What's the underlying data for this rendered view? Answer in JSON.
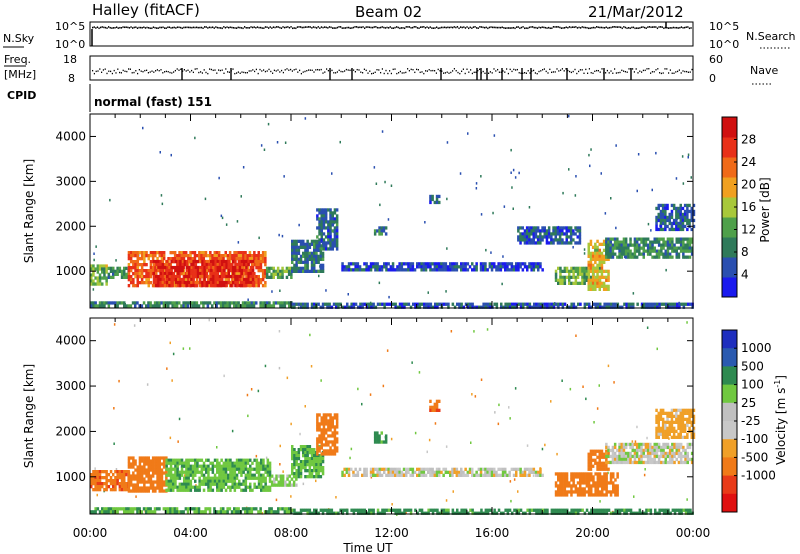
{
  "header": {
    "station": "Halley (fitACF)",
    "beam": "Beam 02",
    "date": "21/Mar/2012"
  },
  "aux_panels": {
    "nsky_label": "N.Sky",
    "nsky_ticks": [
      "10^5",
      "10^0"
    ],
    "nsearch_label": "N.Search",
    "nsearch_ticks": [
      "10^5",
      "10^0"
    ],
    "freq_label_1": "Freq.",
    "freq_label_2": "[MHz]",
    "freq_ticks": [
      "18",
      "8"
    ],
    "nave_label": "Nave",
    "nave_ticks": [
      "60",
      "0"
    ],
    "cpid_label": "CPID",
    "cpid_text": "normal (fast) 151"
  },
  "colors": {
    "power_scale": [
      "#1a1aee",
      "#2a4fb0",
      "#2f7a5a",
      "#4fa04a",
      "#a8c83a",
      "#f0a020",
      "#f06a18",
      "#e83018",
      "#d01010"
    ],
    "velocity_scale": [
      "#e01010",
      "#e83a18",
      "#f07a18",
      "#f0a028",
      "#c8c8c8",
      "#c0c0c0",
      "#70c840",
      "#2e8a50",
      "#2a5ab0",
      "#1e2ebe"
    ]
  },
  "chart_data": [
    {
      "type": "heatmap",
      "name": "Power panel",
      "xlabel": "",
      "ylabel": "Slant Range [km]",
      "x_ticks": [
        "00:00",
        "04:00",
        "08:00",
        "12:00",
        "16:00",
        "20:00",
        "00:00"
      ],
      "x_range_hours": [
        0,
        24
      ],
      "y_ticks": [
        1000,
        2000,
        3000,
        4000
      ],
      "ylim": [
        180,
        4500
      ],
      "colorbar_label": "Power [dB]",
      "colorbar_ticks": [
        "4",
        "8",
        "12",
        "16",
        "20",
        "24",
        "28"
      ],
      "colorbar_range": [
        0,
        32
      ],
      "regions": [
        {
          "t0": 0.0,
          "t1": 0.7,
          "r0": 700,
          "r1": 1150,
          "value": 14
        },
        {
          "t0": 0.7,
          "t1": 1.5,
          "r0": 850,
          "r1": 1100,
          "value": 10
        },
        {
          "t0": 1.5,
          "t1": 7.0,
          "r0": 650,
          "r1": 1450,
          "value": 24
        },
        {
          "t0": 2.5,
          "t1": 6.5,
          "r0": 700,
          "r1": 1250,
          "value": 28
        },
        {
          "t0": 7.0,
          "t1": 8.0,
          "r0": 850,
          "r1": 1100,
          "value": 12
        },
        {
          "t0": 8.0,
          "t1": 9.3,
          "r0": 1000,
          "r1": 1700,
          "value": 8
        },
        {
          "t0": 9.0,
          "t1": 9.8,
          "r0": 1500,
          "r1": 2400,
          "value": 7
        },
        {
          "t0": 11.3,
          "t1": 11.8,
          "r0": 1800,
          "r1": 2000,
          "value": 8
        },
        {
          "t0": 13.5,
          "t1": 13.9,
          "r0": 2500,
          "r1": 2700,
          "value": 7
        },
        {
          "t0": 10.0,
          "t1": 18.0,
          "r0": 1050,
          "r1": 1200,
          "value": 5
        },
        {
          "t0": 18.5,
          "t1": 20.3,
          "r0": 700,
          "r1": 1100,
          "value": 13
        },
        {
          "t0": 19.8,
          "t1": 20.6,
          "r0": 600,
          "r1": 1700,
          "value": 18
        },
        {
          "t0": 20.5,
          "t1": 24.0,
          "r0": 1300,
          "r1": 1750,
          "value": 10
        },
        {
          "t0": 17.0,
          "t1": 19.5,
          "r0": 1600,
          "r1": 2000,
          "value": 6
        },
        {
          "t0": 22.5,
          "t1": 24.0,
          "r0": 1900,
          "r1": 2500,
          "value": 6
        },
        {
          "t0": 0.0,
          "t1": 8.0,
          "r0": 200,
          "r1": 330,
          "value": 10
        },
        {
          "t0": 8.0,
          "t1": 24.0,
          "r0": 200,
          "r1": 300,
          "value": 6
        }
      ]
    },
    {
      "type": "heatmap",
      "name": "Velocity panel",
      "xlabel": "Time UT",
      "ylabel": "Slant Range [km]",
      "x_ticks": [
        "00:00",
        "04:00",
        "08:00",
        "12:00",
        "16:00",
        "20:00",
        "00:00"
      ],
      "x_range_hours": [
        0,
        24
      ],
      "y_ticks": [
        1000,
        2000,
        3000,
        4000
      ],
      "ylim": [
        180,
        4500
      ],
      "colorbar_label": "Velocity [m s^-1]",
      "colorbar_ticks": [
        "1000",
        "500",
        "100",
        "25",
        "-25",
        "-100",
        "-500",
        "-1000"
      ],
      "regions": [
        {
          "t0": 0.0,
          "t1": 1.5,
          "r0": 750,
          "r1": 1150,
          "value": -400
        },
        {
          "t0": 1.5,
          "t1": 3.0,
          "r0": 700,
          "r1": 1450,
          "value": -300
        },
        {
          "t0": 3.0,
          "t1": 7.2,
          "r0": 700,
          "r1": 1400,
          "value": 80
        },
        {
          "t0": 7.2,
          "t1": 8.2,
          "r0": 850,
          "r1": 1050,
          "value": 60
        },
        {
          "t0": 8.0,
          "t1": 9.3,
          "r0": 1000,
          "r1": 1700,
          "value": 90
        },
        {
          "t0": 9.0,
          "t1": 9.8,
          "r0": 1500,
          "r1": 2400,
          "value": -300
        },
        {
          "t0": 11.3,
          "t1": 11.8,
          "r0": 1800,
          "r1": 2000,
          "value": 150
        },
        {
          "t0": 13.5,
          "t1": 13.9,
          "r0": 2500,
          "r1": 2700,
          "value": -400
        },
        {
          "t0": 10.0,
          "t1": 18.0,
          "r0": 1050,
          "r1": 1200,
          "value": 0
        },
        {
          "t0": 18.5,
          "t1": 21.0,
          "r0": 600,
          "r1": 1100,
          "value": -300
        },
        {
          "t0": 19.8,
          "t1": 20.6,
          "r0": 1200,
          "r1": 1600,
          "value": -300
        },
        {
          "t0": 20.5,
          "t1": 24.0,
          "r0": 1300,
          "r1": 1750,
          "value": 0
        },
        {
          "t0": 22.5,
          "t1": 24.0,
          "r0": 1900,
          "r1": 2500,
          "value": -60
        },
        {
          "t0": 0.0,
          "t1": 8.0,
          "r0": 200,
          "r1": 330,
          "value": 100
        },
        {
          "t0": 8.0,
          "t1": 24.0,
          "r0": 200,
          "r1": 300,
          "value": 150
        }
      ]
    }
  ]
}
